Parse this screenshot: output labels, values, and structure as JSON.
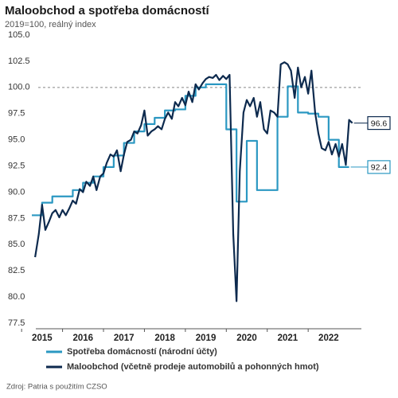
{
  "chart_data": {
    "type": "line",
    "title": "Maloobchod a spotřeba domácností",
    "subtitle": "2019=100, reálný index",
    "source": "Zdroj: Patria s použitím CZSO",
    "xlim": [
      2015.25,
      2023.3
    ],
    "xticks": [
      {
        "value": 2015.5,
        "label": "2015"
      },
      {
        "value": 2016.5,
        "label": "2016"
      },
      {
        "value": 2017.5,
        "label": "2017"
      },
      {
        "value": 2018.5,
        "label": "2018"
      },
      {
        "value": 2019.5,
        "label": "2019"
      },
      {
        "value": 2020.5,
        "label": "2020"
      },
      {
        "value": 2021.5,
        "label": "2021"
      },
      {
        "value": 2022.5,
        "label": "2022"
      }
    ],
    "ylim": [
      77.5,
      105
    ],
    "yticks": [
      77.5,
      80,
      82.5,
      85,
      87.5,
      90,
      92.5,
      95,
      97.5,
      100,
      102.5,
      105
    ],
    "ytick_labels": [
      "77.5",
      "80.0",
      "82.5",
      "85.0",
      "87.5",
      "90.0",
      "92.5",
      "95.0",
      "97.5",
      "100.0",
      "102.5",
      "105.0"
    ],
    "reference_line": 100,
    "series": [
      {
        "name": "Spotřeba domácností (národní účty)",
        "color": "#2b98c2",
        "step": true,
        "x": [
          2015.25,
          2015.5,
          2015.75,
          2016,
          2016.25,
          2016.5,
          2016.75,
          2017,
          2017.25,
          2017.5,
          2017.75,
          2018,
          2018.25,
          2018.5,
          2018.75,
          2019,
          2019.25,
          2019.5,
          2019.75,
          2020,
          2020.25,
          2020.5,
          2020.75,
          2021,
          2021.25,
          2021.5,
          2021.75,
          2022,
          2022.25,
          2022.5,
          2022.75
        ],
        "values": [
          87.8,
          89.0,
          89.6,
          89.6,
          90.2,
          90.9,
          91.5,
          92.4,
          93.5,
          94.7,
          95.8,
          96.5,
          97.1,
          97.8,
          97.9,
          99.2,
          100.0,
          100.3,
          100.3,
          96.0,
          89.1,
          94.9,
          90.2,
          90.2,
          97.2,
          100.1,
          97.6,
          97.5,
          97.2,
          95.0,
          92.4
        ]
      },
      {
        "name": "Maloobchod (včetně prodeje automobilů a pohonných hmot)",
        "color": "#0d2a4e",
        "x": [
          2015.33,
          2015.42,
          2015.5,
          2015.58,
          2015.67,
          2015.75,
          2015.83,
          2015.92,
          2016,
          2016.08,
          2016.17,
          2016.25,
          2016.33,
          2016.42,
          2016.5,
          2016.58,
          2016.67,
          2016.75,
          2016.83,
          2016.92,
          2017,
          2017.08,
          2017.17,
          2017.25,
          2017.33,
          2017.42,
          2017.5,
          2017.58,
          2017.67,
          2017.75,
          2017.83,
          2017.92,
          2018,
          2018.08,
          2018.17,
          2018.25,
          2018.33,
          2018.42,
          2018.5,
          2018.58,
          2018.67,
          2018.75,
          2018.83,
          2018.92,
          2019,
          2019.08,
          2019.17,
          2019.25,
          2019.33,
          2019.42,
          2019.5,
          2019.58,
          2019.67,
          2019.75,
          2019.83,
          2019.92,
          2020,
          2020.08,
          2020.17,
          2020.25,
          2020.33,
          2020.42,
          2020.5,
          2020.58,
          2020.67,
          2020.75,
          2020.83,
          2020.92,
          2021,
          2021.08,
          2021.17,
          2021.25,
          2021.33,
          2021.42,
          2021.5,
          2021.58,
          2021.67,
          2021.75,
          2021.83,
          2021.92,
          2022,
          2022.08,
          2022.17,
          2022.25,
          2022.33,
          2022.42,
          2022.5,
          2022.58,
          2022.67,
          2022.75,
          2022.83,
          2022.92,
          2023,
          2023.08
        ],
        "values": [
          83.8,
          86.0,
          88.8,
          86.4,
          87.2,
          88.0,
          88.3,
          87.6,
          88.3,
          87.8,
          88.5,
          89.2,
          88.9,
          90.3,
          90.0,
          91.0,
          90.6,
          91.5,
          90.2,
          91.5,
          91.8,
          92.8,
          93.6,
          93.4,
          94.0,
          92.0,
          93.6,
          94.8,
          95.0,
          95.8,
          95.6,
          96.4,
          97.8,
          95.4,
          95.8,
          96.0,
          96.3,
          96.0,
          97.0,
          97.6,
          97.0,
          98.6,
          98.2,
          99.0,
          98.3,
          99.6,
          98.6,
          100.3,
          99.8,
          100.4,
          100.8,
          101.0,
          100.9,
          101.2,
          100.7,
          101.1,
          100.8,
          101.2,
          86.0,
          79.6,
          92.0,
          97.6,
          98.8,
          98.2,
          99.0,
          97.2,
          98.6,
          96.0,
          95.6,
          97.8,
          97.6,
          97.2,
          102.2,
          102.4,
          102.2,
          101.6,
          99.0,
          101.9,
          100.0,
          101.0,
          99.4,
          101.6,
          97.6,
          95.6,
          94.2,
          94.0,
          94.8,
          93.6,
          94.6,
          93.4,
          94.6,
          92.6,
          96.9,
          96.6
        ]
      }
    ]
  }
}
